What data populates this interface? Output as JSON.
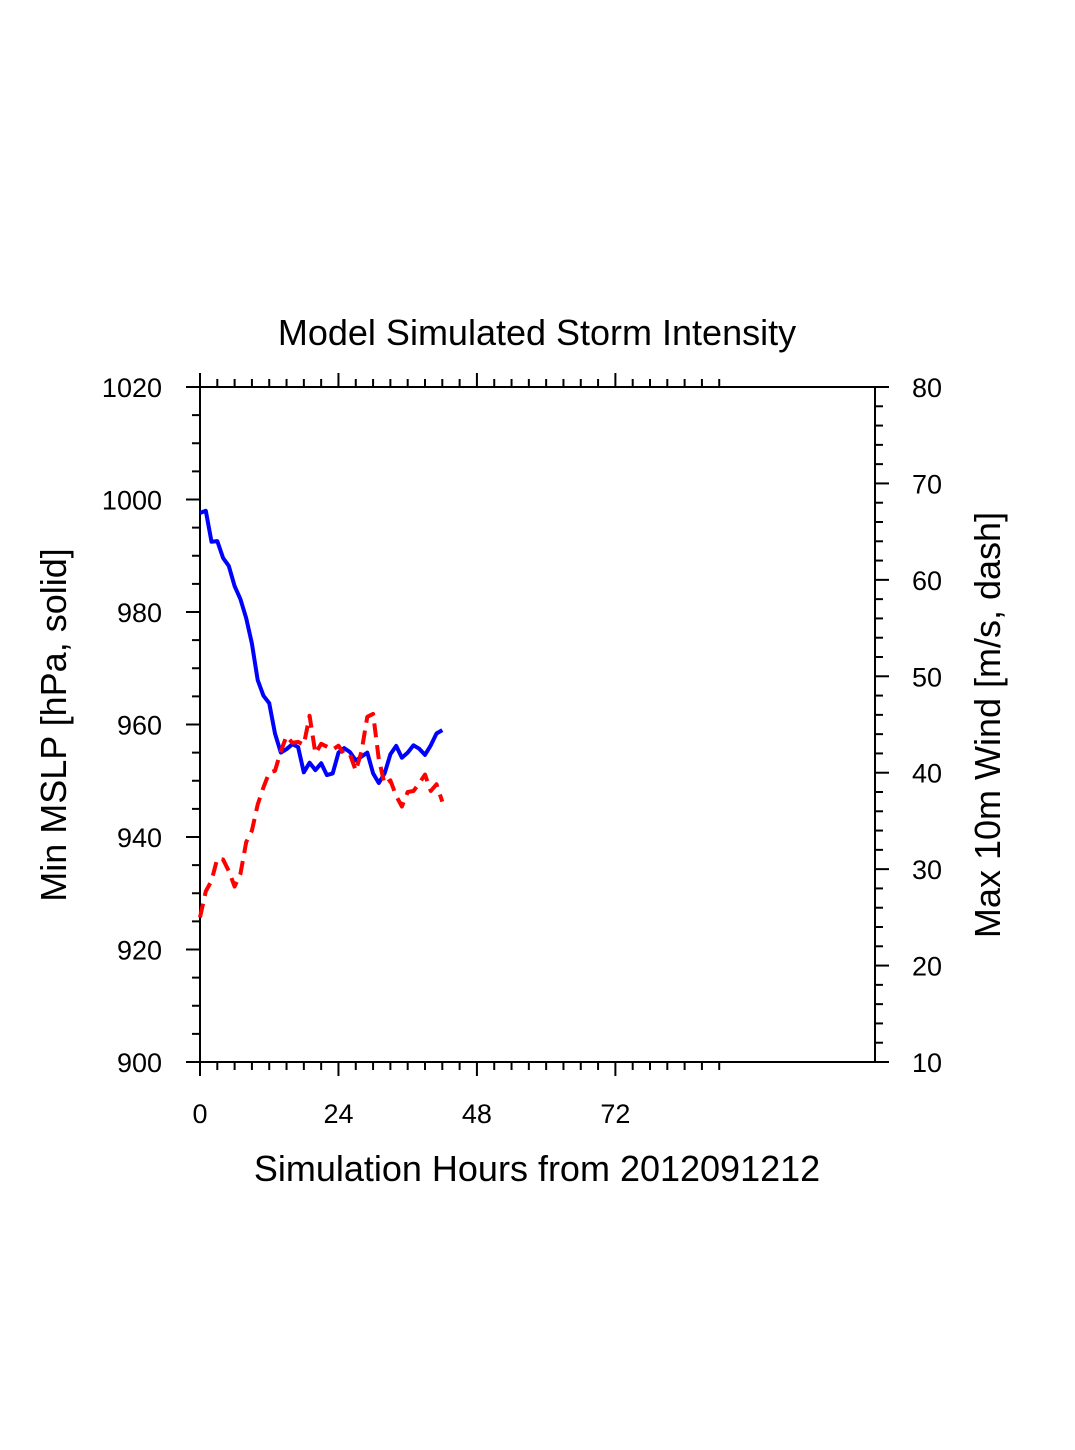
{
  "chart_data": {
    "type": "line",
    "title": "Model Simulated Storm Intensity",
    "xlabel": "Simulation Hours from 2012091212",
    "ylabel_left": "Min MSLP  [hPa, solid]",
    "ylabel_right": "Max 10m Wind  [m/s, dash]",
    "xlim": [
      0,
      117
    ],
    "ylim_left": [
      900,
      1020
    ],
    "ylim_right": [
      10,
      80
    ],
    "x_ticks": [
      0,
      24,
      48,
      72
    ],
    "x_tick_labels": [
      "0",
      "24",
      "48",
      "72"
    ],
    "x_minor_step": 3,
    "x_minor_max": 90,
    "y_left_ticks": [
      900,
      920,
      940,
      960,
      980,
      1000,
      1020
    ],
    "y_left_tick_labels": [
      "900",
      "920",
      "940",
      "960",
      "980",
      "1000",
      "1020"
    ],
    "y_left_minor_step": 5,
    "y_right_ticks": [
      10,
      20,
      30,
      40,
      50,
      60,
      70,
      80
    ],
    "y_right_tick_labels": [
      "10",
      "20",
      "30",
      "40",
      "50",
      "60",
      "70",
      "80"
    ],
    "y_right_minor_step": 2,
    "series": [
      {
        "name": "Min MSLP",
        "axis": "left",
        "style": "solid",
        "color": "#0000ff",
        "x": [
          0,
          1,
          2,
          3,
          4,
          5,
          6,
          7,
          8,
          9,
          10,
          11,
          12,
          13,
          14,
          15,
          16,
          17,
          18,
          19,
          20,
          21,
          22,
          23,
          24,
          25,
          26,
          27,
          28,
          29,
          30,
          31,
          32,
          33,
          34,
          35,
          36,
          37,
          38,
          39,
          40,
          41,
          42
        ],
        "values": [
          997.6,
          998.0,
          992.5,
          992.6,
          989.6,
          988.2,
          984.6,
          982.3,
          978.9,
          974.4,
          967.9,
          965.1,
          963.8,
          958.4,
          955.0,
          955.6,
          956.5,
          956.0,
          951.5,
          953.2,
          951.9,
          953.1,
          951.0,
          951.3,
          955.0,
          955.8,
          955.1,
          953.6,
          954.3,
          955.0,
          951.3,
          949.6,
          951.3,
          954.7,
          956.2,
          954.1,
          955.0,
          956.3,
          955.7,
          954.6,
          956.3,
          958.4,
          959.0
        ]
      },
      {
        "name": "Max 10m Wind",
        "axis": "right",
        "style": "dashed",
        "color": "#ff0000",
        "x": [
          0,
          1,
          2,
          3,
          4,
          5,
          6,
          7,
          8,
          9,
          10,
          11,
          12,
          13,
          14,
          15,
          16,
          17,
          18,
          19,
          20,
          21,
          22,
          23,
          24,
          25,
          26,
          27,
          28,
          29,
          30,
          31,
          32,
          33,
          34,
          35,
          36,
          37,
          38,
          39,
          40,
          41,
          42
        ],
        "values": [
          25.0,
          27.7,
          28.8,
          31.1,
          31.0,
          29.8,
          28.2,
          29.5,
          32.8,
          34.0,
          36.7,
          38.5,
          40.0,
          40.2,
          42.2,
          43.8,
          43.1,
          43.2,
          42.9,
          45.9,
          42.0,
          43.0,
          42.7,
          42.4,
          42.8,
          41.9,
          41.9,
          40.2,
          42.2,
          45.8,
          46.1,
          41.4,
          38.8,
          39.2,
          37.6,
          36.5,
          38.0,
          38.1,
          38.9,
          39.8,
          38.1,
          38.8,
          37.0
        ]
      }
    ]
  }
}
